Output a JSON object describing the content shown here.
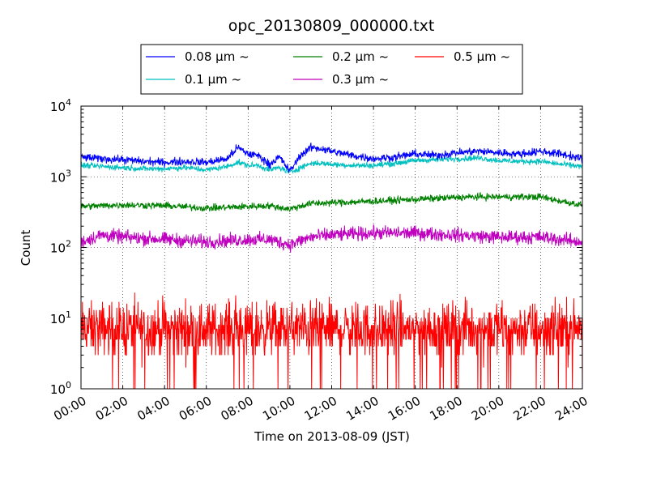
{
  "chart_data": {
    "type": "line",
    "title": "opc_20130809_000000.txt",
    "xlabel": "Time on 2013-08-09 (JST)",
    "ylabel": "Count",
    "x_ticks": [
      "00:00",
      "02:00",
      "04:00",
      "06:00",
      "08:00",
      "10:00",
      "12:00",
      "14:00",
      "16:00",
      "18:00",
      "20:00",
      "22:00",
      "24:00"
    ],
    "xlim_hours": [
      0,
      24
    ],
    "y_scale": "log",
    "ylim": [
      1,
      10000
    ],
    "y_ticks": [
      {
        "value": 1,
        "base": "10",
        "exp": "0"
      },
      {
        "value": 10,
        "base": "10",
        "exp": "1"
      },
      {
        "value": 100,
        "base": "10",
        "exp": "2"
      },
      {
        "value": 1000,
        "base": "10",
        "exp": "3"
      },
      {
        "value": 10000,
        "base": "10",
        "exp": "4"
      }
    ],
    "grid": true,
    "legend_position": "top-center",
    "series": [
      {
        "name": "0.08 μm ~",
        "color": "#0000ff",
        "hours": [
          0,
          1,
          2,
          3,
          4,
          5,
          6,
          7,
          7.5,
          8,
          8.5,
          9,
          9.5,
          10,
          10.5,
          11,
          11.5,
          12,
          13,
          14,
          15,
          16,
          17,
          18,
          19,
          20,
          21,
          22,
          23,
          24
        ],
        "values": [
          1900,
          1800,
          1750,
          1650,
          1600,
          1650,
          1600,
          1800,
          2600,
          2100,
          2000,
          1500,
          1900,
          1200,
          2000,
          2600,
          2500,
          2300,
          2000,
          1800,
          1900,
          2100,
          2000,
          2200,
          2300,
          2200,
          2100,
          2300,
          2100,
          1800
        ],
        "noise": 0.07
      },
      {
        "name": "0.1 μm ~",
        "color": "#00bfbf",
        "hours": [
          0,
          1,
          2,
          3,
          4,
          5,
          6,
          7,
          7.5,
          8,
          8.5,
          9,
          9.5,
          10,
          10.5,
          11,
          11.5,
          12,
          13,
          14,
          15,
          16,
          17,
          18,
          19,
          20,
          21,
          22,
          23,
          24
        ],
        "values": [
          1450,
          1400,
          1350,
          1300,
          1300,
          1350,
          1250,
          1400,
          1600,
          1450,
          1450,
          1250,
          1350,
          1150,
          1350,
          1550,
          1550,
          1500,
          1450,
          1450,
          1550,
          1700,
          1750,
          1800,
          1850,
          1700,
          1650,
          1650,
          1500,
          1400
        ],
        "noise": 0.05
      },
      {
        "name": "0.2 μm ~",
        "color": "#008000",
        "hours": [
          0,
          2,
          4,
          6,
          8,
          9,
          10,
          11,
          12,
          14,
          16,
          18,
          19,
          20,
          22,
          23,
          24
        ],
        "values": [
          380,
          400,
          390,
          360,
          380,
          390,
          350,
          420,
          430,
          450,
          480,
          510,
          520,
          520,
          520,
          450,
          400
        ],
        "noise": 0.06
      },
      {
        "name": "0.3 μm ~",
        "color": "#bf00bf",
        "hours": [
          0,
          1,
          2,
          4,
          6,
          8,
          9,
          10,
          11,
          12,
          14,
          16,
          18,
          20,
          22,
          24
        ],
        "values": [
          120,
          150,
          140,
          130,
          120,
          130,
          130,
          110,
          140,
          150,
          160,
          160,
          150,
          140,
          140,
          120
        ],
        "noise": 0.12
      },
      {
        "name": "0.5 μm ~",
        "color": "#ff0000",
        "hours": [
          0,
          4,
          8,
          12,
          16,
          20,
          24
        ],
        "values": [
          7,
          7,
          7,
          7,
          7,
          7,
          7
        ],
        "noise": 0.9
      }
    ]
  }
}
